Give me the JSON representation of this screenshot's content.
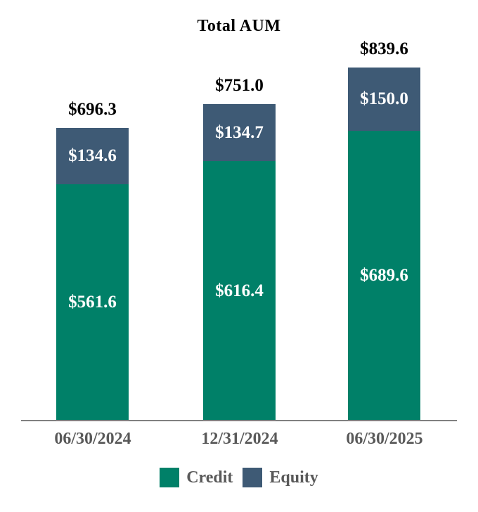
{
  "colors": {
    "credit": "#008068",
    "equity": "#3E5A75",
    "axis": "#808080",
    "gray_text": "#595959",
    "title": "#000000",
    "bar_value_text": "#FFFFFF"
  },
  "chart_data": {
    "type": "bar",
    "stacked": true,
    "title": "Total AUM",
    "categories": [
      "06/30/2024",
      "12/31/2024",
      "06/30/2025"
    ],
    "series": [
      {
        "name": "Credit",
        "color": "#008068",
        "values": [
          561.6,
          616.4,
          689.6
        ],
        "labels": [
          "$561.6",
          "$616.4",
          "$689.6"
        ]
      },
      {
        "name": "Equity",
        "color": "#3E5A75",
        "values": [
          134.6,
          134.7,
          150.0
        ],
        "labels": [
          "$134.6",
          "$134.7",
          "$150.0"
        ]
      }
    ],
    "totals": [
      696.3,
      751.0,
      839.6
    ],
    "total_labels": [
      "$696.3",
      "$751.0",
      "$839.6"
    ],
    "legend": [
      "Credit",
      "Equity"
    ],
    "legend_position": "bottom",
    "value_axis_visible": false,
    "grid": false,
    "ylim": [
      0,
      840
    ]
  }
}
